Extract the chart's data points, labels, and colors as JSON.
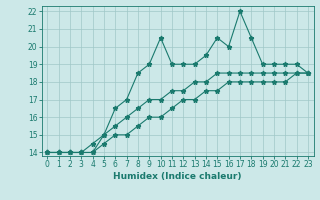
{
  "xlabel": "Humidex (Indice chaleur)",
  "x": [
    0,
    1,
    2,
    3,
    4,
    5,
    6,
    7,
    8,
    9,
    10,
    11,
    12,
    13,
    14,
    15,
    16,
    17,
    18,
    19,
    20,
    21,
    22,
    23
  ],
  "line1": [
    14,
    14,
    14,
    14,
    14,
    15,
    16.5,
    17,
    18.5,
    19,
    20.5,
    19,
    19,
    19,
    19.5,
    20.5,
    20,
    22,
    20.5,
    19,
    19,
    19,
    19,
    18.5
  ],
  "line2": [
    14,
    14,
    14,
    14,
    14.5,
    15,
    15.5,
    16,
    16.5,
    17,
    17,
    17.5,
    17.5,
    18,
    18,
    18.5,
    18.5,
    18.5,
    18.5,
    18.5,
    18.5,
    18.5,
    18.5,
    18.5
  ],
  "line3": [
    14,
    14,
    14,
    14,
    14,
    14.5,
    15,
    15,
    15.5,
    16,
    16,
    16.5,
    17,
    17,
    17.5,
    17.5,
    18,
    18,
    18,
    18,
    18,
    18,
    18.5,
    18.5
  ],
  "ylim": [
    14,
    22
  ],
  "xlim": [
    0,
    23
  ],
  "yticks": [
    14,
    15,
    16,
    17,
    18,
    19,
    20,
    21,
    22
  ],
  "xticks": [
    0,
    1,
    2,
    3,
    4,
    5,
    6,
    7,
    8,
    9,
    10,
    11,
    12,
    13,
    14,
    15,
    16,
    17,
    18,
    19,
    20,
    21,
    22,
    23
  ],
  "line_color": "#1a7a6e",
  "bg_color": "#cce8e8",
  "grid_color": "#a0c8c8",
  "marker": "*",
  "marker_size": 3.5,
  "linewidth": 0.8,
  "tick_fontsize": 5.5,
  "xlabel_fontsize": 6.5
}
